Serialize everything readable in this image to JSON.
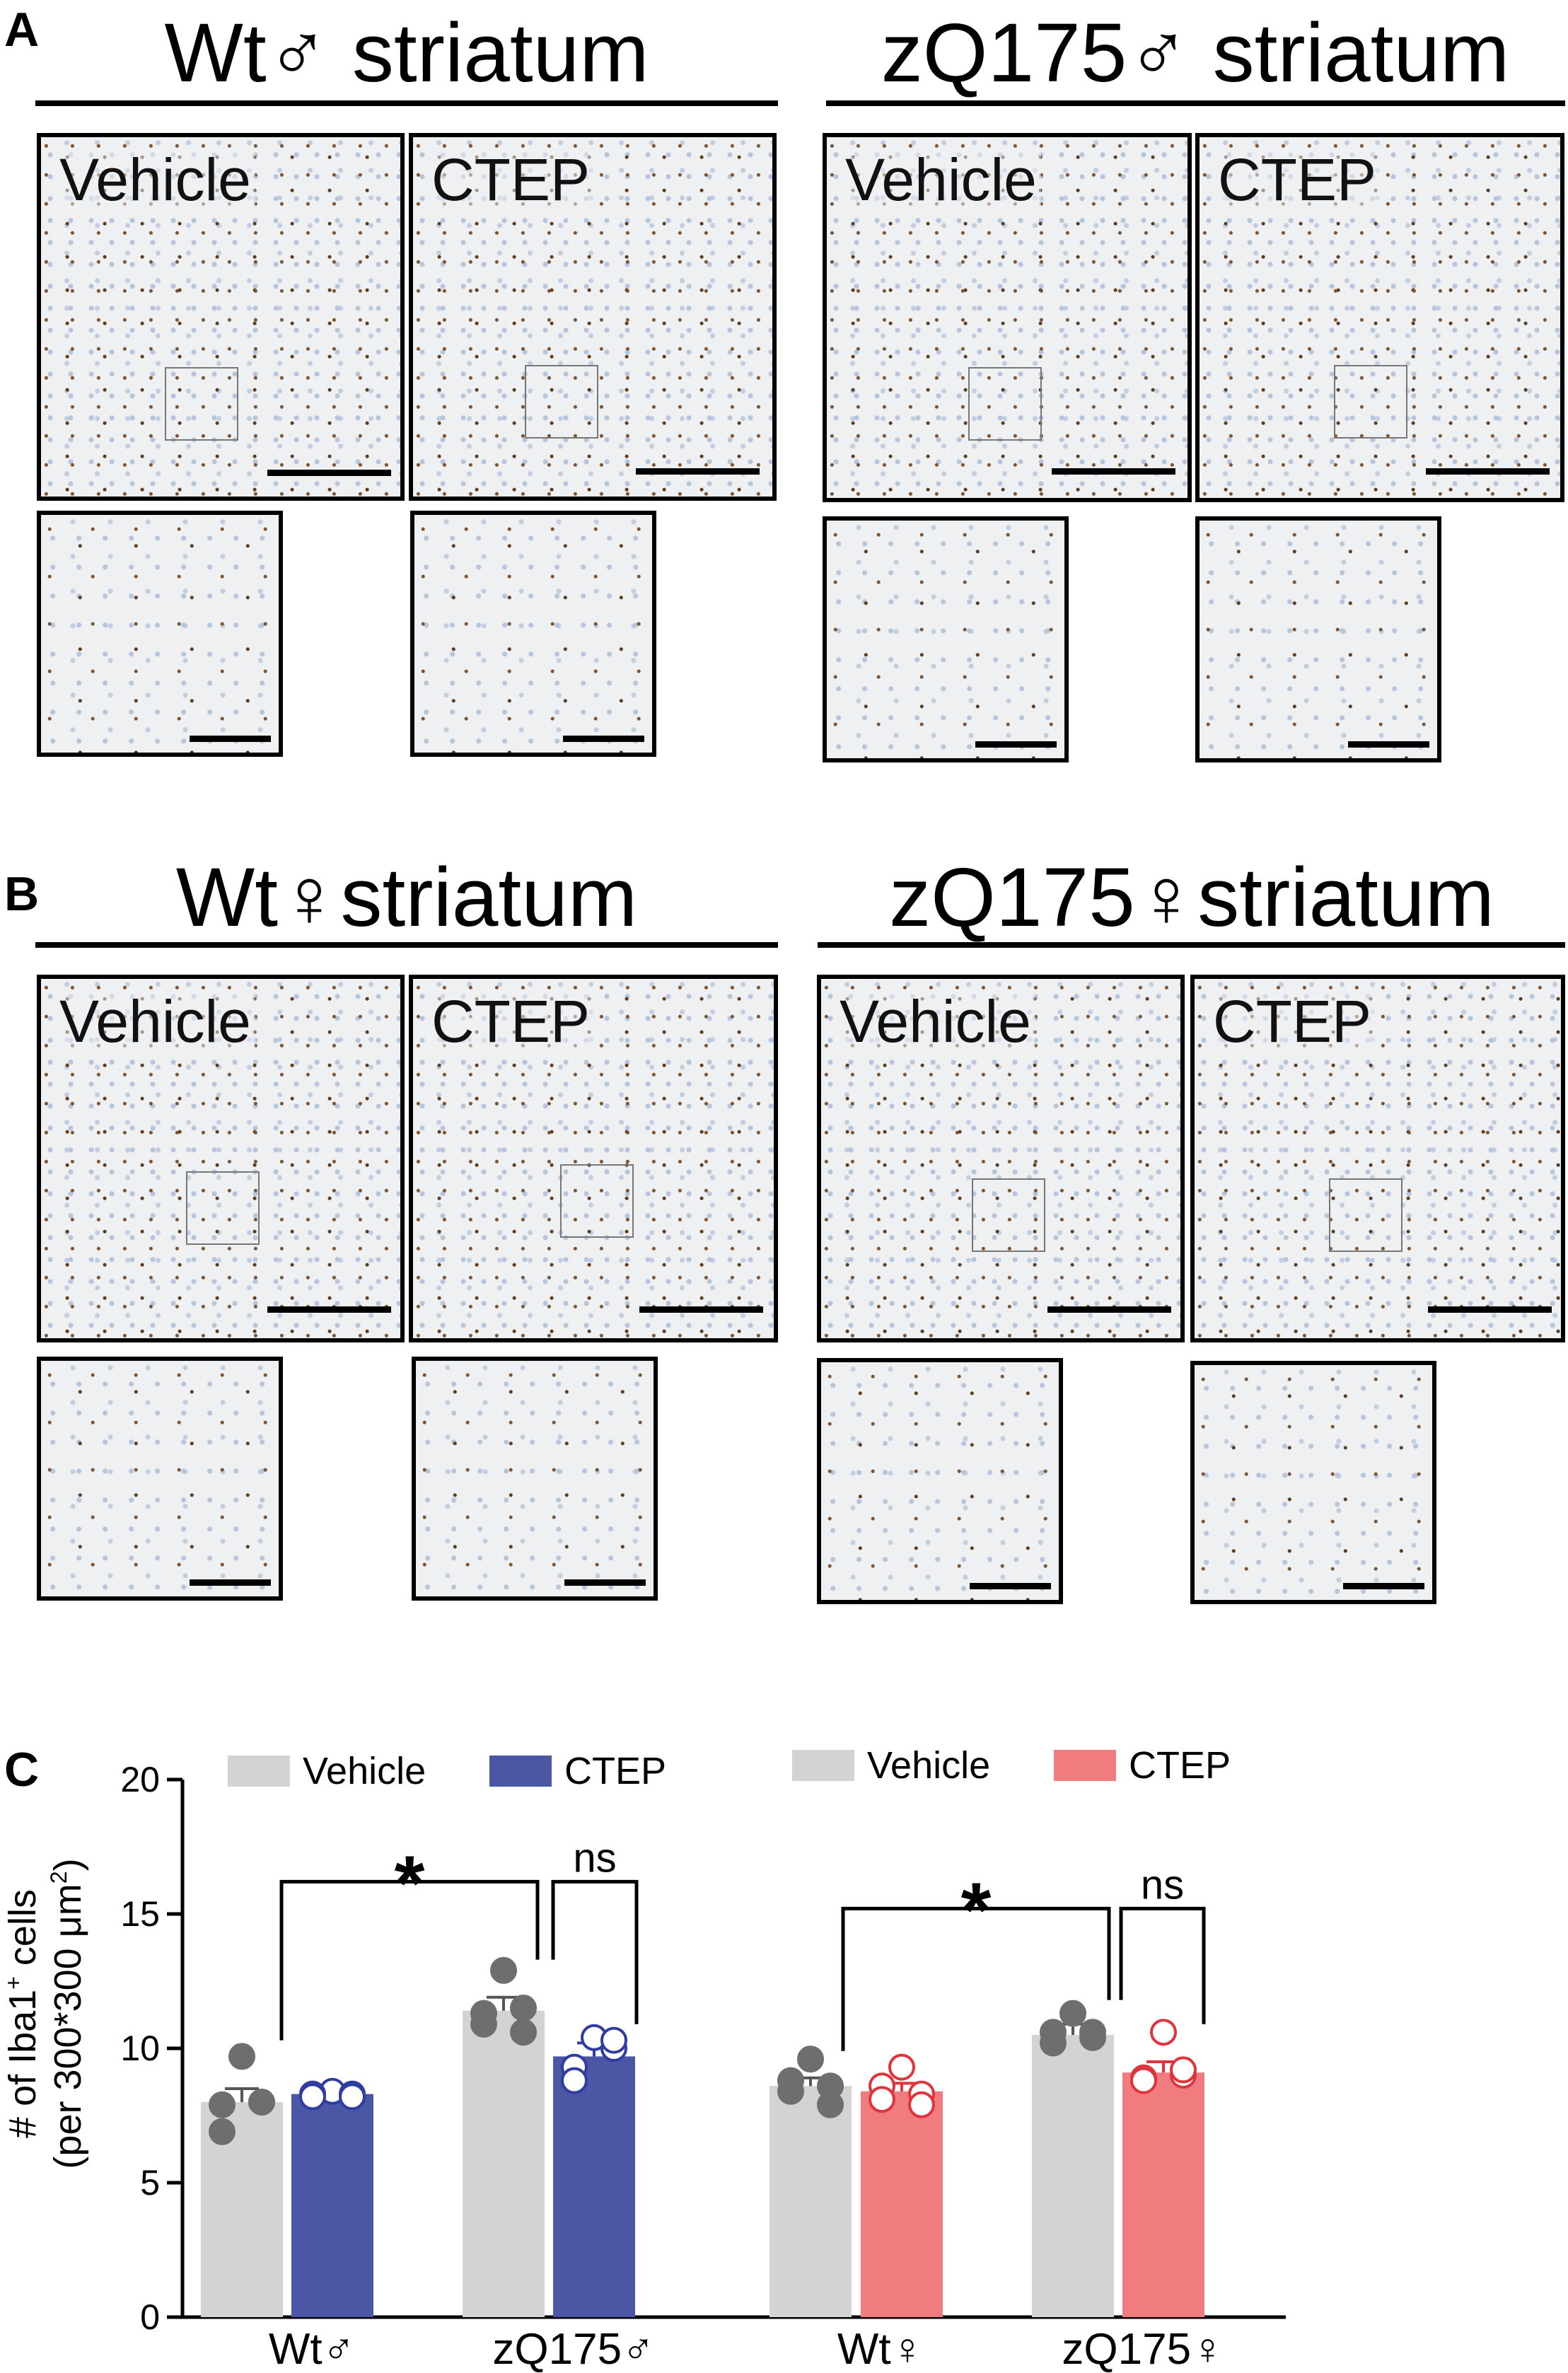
{
  "panels": [
    {
      "letter": "A",
      "groups": [
        {
          "title": "Wt♂ striatum",
          "conditions": [
            "Vehicle",
            "CTEP"
          ]
        },
        {
          "title": "zQ175♂ striatum",
          "conditions": [
            "Vehicle",
            "CTEP"
          ]
        }
      ]
    },
    {
      "letter": "B",
      "groups": [
        {
          "title": "Wt♀striatum",
          "conditions": [
            "Vehicle",
            "CTEP"
          ]
        },
        {
          "title": "zQ175♀striatum",
          "conditions": [
            "Vehicle",
            "CTEP"
          ]
        }
      ]
    }
  ],
  "panel_c_letter": "C",
  "colors": {
    "vehicle": "#d3d3d3",
    "ctep_male": "#4b56a5",
    "ctep_female": "#f07c7f",
    "vehicle_dot": "#6e6e6e",
    "ctep_male_dot": "#2f3da0",
    "ctep_female_dot": "#e0343d"
  },
  "chart_data": {
    "type": "bar",
    "ylabel_line1": "# of Iba1",
    "ylabel_sup": "+",
    "ylabel_line1_end": " cells",
    "ylabel_line2": "(per 300*300 μm",
    "ylabel_line2_sup": "2",
    "ylabel_line2_end": ")",
    "ylim": [
      0,
      20
    ],
    "yticks": [
      0,
      5,
      10,
      15,
      20
    ],
    "categories": [
      "Wt♂",
      "zQ175♂",
      "Wt♀",
      "zQ175♀"
    ],
    "legends": [
      {
        "items": [
          {
            "label": "Vehicle",
            "color": "#d3d3d3"
          },
          {
            "label": "CTEP",
            "color": "#4b56a5"
          }
        ]
      },
      {
        "items": [
          {
            "label": "Vehicle",
            "color": "#d3d3d3"
          },
          {
            "label": "CTEP",
            "color": "#f07c7f"
          }
        ]
      }
    ],
    "series": [
      {
        "category": "Wt♂",
        "treatment": "Vehicle",
        "mean": 8.0,
        "sem": 0.5,
        "points": [
          9.7,
          8.0,
          7.9,
          6.9,
          8.0
        ]
      },
      {
        "category": "Wt♂",
        "treatment": "CTEP",
        "mean": 8.3,
        "sem": 0.1,
        "points": [
          8.4,
          8.3,
          8.3,
          8.2,
          8.2
        ]
      },
      {
        "category": "zQ175♂",
        "treatment": "Vehicle",
        "mean": 11.4,
        "sem": 0.5,
        "points": [
          12.9,
          11.5,
          11.3,
          10.9,
          10.6
        ]
      },
      {
        "category": "zQ175♂",
        "treatment": "CTEP",
        "mean": 9.7,
        "sem": 0.5,
        "points": [
          10.4,
          10.0,
          9.3,
          8.8,
          10.3
        ]
      },
      {
        "category": "Wt♀",
        "treatment": "Vehicle",
        "mean": 8.6,
        "sem": 0.3,
        "points": [
          9.6,
          8.6,
          8.8,
          8.4,
          7.9
        ]
      },
      {
        "category": "Wt♀",
        "treatment": "CTEP",
        "mean": 8.4,
        "sem": 0.3,
        "points": [
          9.3,
          8.3,
          8.6,
          8.1,
          7.9
        ]
      },
      {
        "category": "zQ175♀",
        "treatment": "Vehicle",
        "mean": 10.5,
        "sem": 0.4,
        "points": [
          11.3,
          10.6,
          10.6,
          10.2,
          10.4
        ]
      },
      {
        "category": "zQ175♀",
        "treatment": "CTEP",
        "mean": 9.1,
        "sem": 0.4,
        "points": [
          10.6,
          9.0,
          8.9,
          8.8,
          9.2
        ]
      }
    ],
    "annotations": [
      {
        "type": "bracket",
        "label": "*",
        "from": "Wt♂ Vehicle",
        "to": "zQ175♂ Vehicle"
      },
      {
        "type": "bracket",
        "label": "ns",
        "from": "zQ175♂ Vehicle",
        "to": "zQ175♂ CTEP"
      },
      {
        "type": "bracket",
        "label": "*",
        "from": "Wt♀ Vehicle",
        "to": "zQ175♀ Vehicle"
      },
      {
        "type": "bracket",
        "label": "ns",
        "from": "zQ175♀ Vehicle",
        "to": "zQ175♀ CTEP"
      }
    ]
  }
}
